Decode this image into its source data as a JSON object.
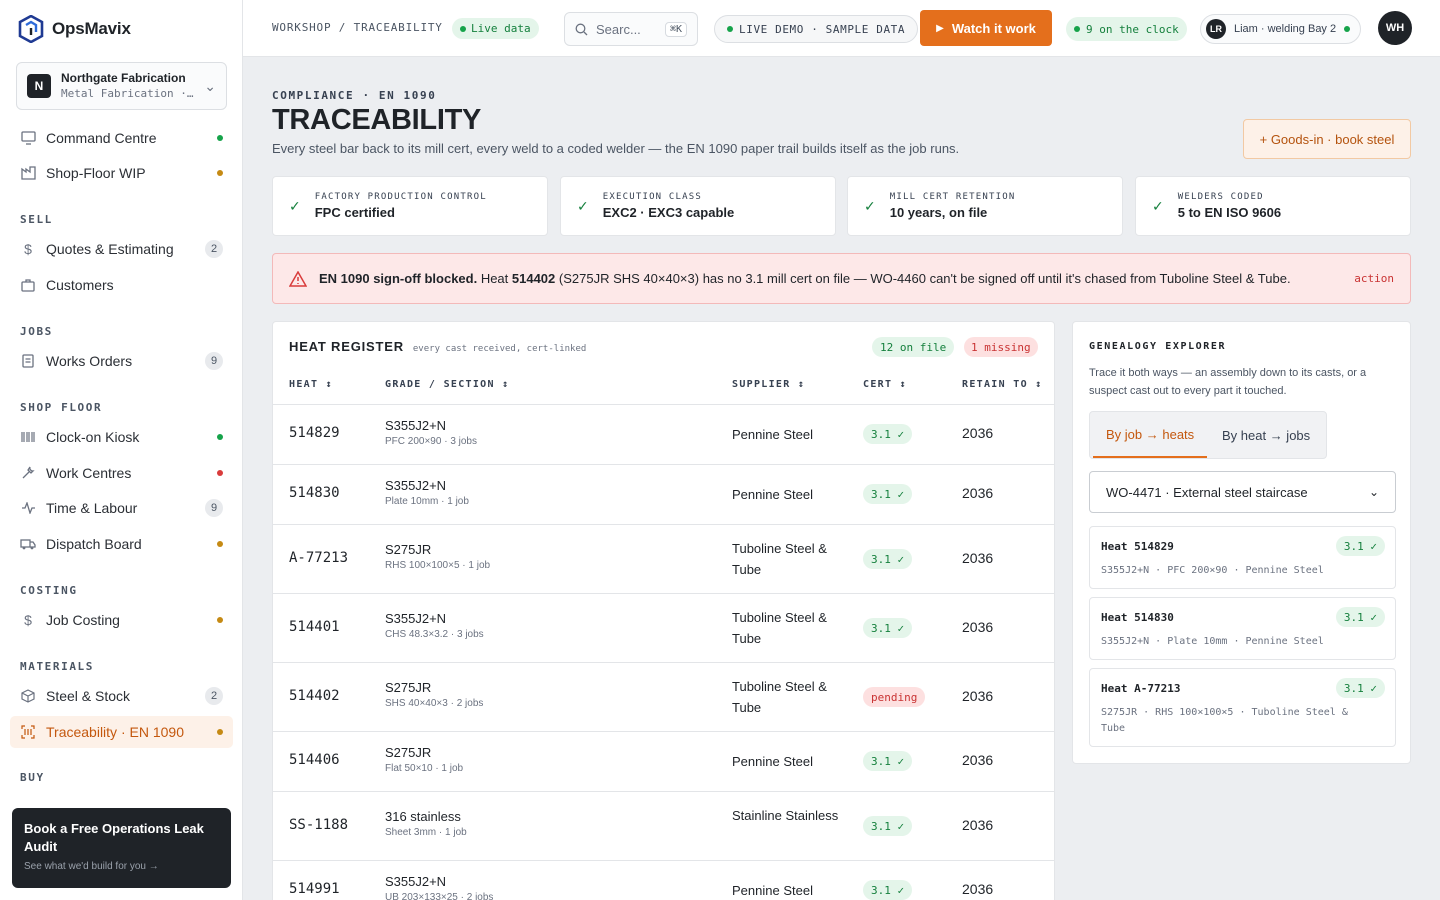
{
  "brand": {
    "name": "OpsMavix"
  },
  "org": {
    "badge": "N",
    "name": "Northgate Fabrication",
    "sub": "Metal Fabrication ·…"
  },
  "nav": {
    "command": "Command Centre",
    "shopfloor_wip": "Shop-Floor WIP",
    "sell": "SELL",
    "quotes": "Quotes & Estimating",
    "quotes_count": "2",
    "customers": "Customers",
    "jobs": "JOBS",
    "works_orders": "Works Orders",
    "works_orders_count": "9",
    "shop_floor": "SHOP FLOOR",
    "kiosk": "Clock-on Kiosk",
    "work_centres": "Work Centres",
    "time_labour": "Time & Labour",
    "time_labour_count": "9",
    "dispatch": "Dispatch Board",
    "costing": "COSTING",
    "job_costing": "Job Costing",
    "materials": "MATERIALS",
    "steel_stock": "Steel & Stock",
    "steel_stock_count": "2",
    "traceability": "Traceability · EN 1090",
    "buy": "BUY"
  },
  "promo": {
    "title": "Book a Free Operations Leak Audit",
    "sub": "See what we'd build for you →"
  },
  "topbar": {
    "breadcrumb": "WORKSHOP / TRACEABILITY",
    "live": "Live data",
    "search_placeholder": "Searc...",
    "search_kbd": "⌘K",
    "demo": "LIVE DEMO · SAMPLE DATA",
    "watch": "Watch it work",
    "clock": "9 on the clock",
    "user_initials": "LR",
    "user": "Liam · welding Bay 2",
    "avatar": "WH"
  },
  "page": {
    "eyebrow": "COMPLIANCE · EN 1090",
    "title": "TRACEABILITY",
    "subtitle": "Every steel bar back to its mill cert, every weld to a coded welder — the EN 1090 paper trail builds itself as the job runs.",
    "goods_in": "+ Goods-in · book steel"
  },
  "stats": [
    {
      "label": "FACTORY PRODUCTION CONTROL",
      "value": "FPC certified"
    },
    {
      "label": "EXECUTION CLASS",
      "value": "EXC2 · EXC3 capable"
    },
    {
      "label": "MILL CERT RETENTION",
      "value": "10 years, on file"
    },
    {
      "label": "WELDERS CODED",
      "value": "5 to EN ISO 9606"
    }
  ],
  "alert": {
    "strong": "EN 1090 sign-off blocked.",
    "pre": " Heat ",
    "heat": "514402",
    "post": " (S275JR SHS 40×40×3) has no 3.1 mill cert on file — WO-4460 can't be signed off until it's chased from Tuboline Steel & Tube.",
    "action": "action"
  },
  "register": {
    "title": "HEAT REGISTER",
    "note": "every cast received, cert-linked",
    "on_file": "12 on file",
    "missing": "1 missing",
    "cols": {
      "heat": "HEAT ↕",
      "grade": "GRADE / SECTION ↕",
      "supplier": "SUPPLIER ↕",
      "cert": "CERT ↕",
      "retain": "RETAIN TO ↕"
    },
    "rows": [
      {
        "heat": "514829",
        "grade": "S355J2+N",
        "section": "PFC 200×90 · 3 jobs",
        "supplier": "Pennine Steel",
        "cert": "3.1 ✓",
        "retain": "2036"
      },
      {
        "heat": "514830",
        "grade": "S355J2+N",
        "section": "Plate 10mm · 1 job",
        "supplier": "Pennine Steel",
        "cert": "3.1 ✓",
        "retain": "2036"
      },
      {
        "heat": "A-77213",
        "grade": "S275JR",
        "section": "RHS 100×100×5 · 1 job",
        "supplier": "Tuboline Steel & Tube",
        "cert": "3.1 ✓",
        "retain": "2036"
      },
      {
        "heat": "514401",
        "grade": "S355J2+N",
        "section": "CHS 48.3×3.2 · 3 jobs",
        "supplier": "Tuboline Steel & Tube",
        "cert": "3.1 ✓",
        "retain": "2036"
      },
      {
        "heat": "514402",
        "grade": "S275JR",
        "section": "SHS 40×40×3 · 2 jobs",
        "supplier": "Tuboline Steel & Tube",
        "cert": "pending",
        "retain": "2036"
      },
      {
        "heat": "514406",
        "grade": "S275JR",
        "section": "Flat 50×10 · 1 job",
        "supplier": "Pennine Steel",
        "cert": "3.1 ✓",
        "retain": "2036"
      },
      {
        "heat": "SS-1188",
        "grade": "316 stainless",
        "section": "Sheet 3mm · 1 job",
        "supplier": "Stainline Stainless",
        "cert": "3.1 ✓",
        "retain": "2036"
      },
      {
        "heat": "514991",
        "grade": "S355J2+N",
        "section": "UB 203×133×25 · 2 jobs",
        "supplier": "Pennine Steel",
        "cert": "3.1 ✓",
        "retain": "2036"
      }
    ]
  },
  "genealogy": {
    "title": "GENEALOGY EXPLORER",
    "desc": "Trace it both ways — an assembly down to its casts, or a suspect cast out to every part it touched.",
    "tab_job": "By job → heats",
    "tab_heat": "By heat → jobs",
    "selected": "WO-4471 · External steel staircase",
    "cards": [
      {
        "heat": "Heat 514829",
        "cert": "3.1 ✓",
        "sub": "S355J2+N · PFC 200×90 · Pennine Steel"
      },
      {
        "heat": "Heat 514830",
        "cert": "3.1 ✓",
        "sub": "S355J2+N · Plate 10mm · Pennine Steel"
      },
      {
        "heat": "Heat A-77213",
        "cert": "3.1 ✓",
        "sub": "S275JR · RHS 100×100×5 · Tuboline Steel & Tube"
      }
    ]
  }
}
